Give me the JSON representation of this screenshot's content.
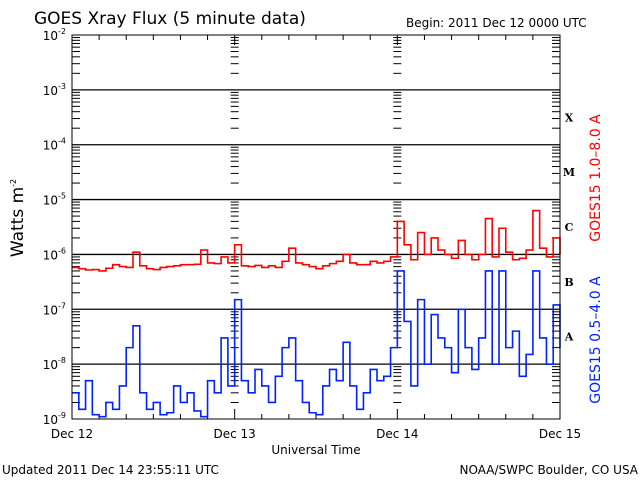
{
  "header": {
    "title": "GOES Xray Flux (5 minute data)",
    "begin": "Begin:  2011 Dec 12 0000 UTC"
  },
  "footer": {
    "updated": "Updated 2011 Dec 14 23:55:11 UTC",
    "credit": "NOAA/SWPC Boulder, CO USA"
  },
  "chart_data": {
    "type": "line",
    "title": "GOES Xray Flux (5 minute data)",
    "xlabel": "Universal Time",
    "ylabel": "Watts m",
    "ylabel_exp": "-2",
    "yscale": "log",
    "ylim": [
      1e-09,
      0.01
    ],
    "xlim_hours": [
      0,
      72
    ],
    "x_tick_labels": [
      "Dec 12",
      "Dec 13",
      "Dec 14",
      "Dec 15"
    ],
    "y_ticks": [
      {
        "base": "10",
        "exp": "-2"
      },
      {
        "base": "10",
        "exp": "-3"
      },
      {
        "base": "10",
        "exp": "-4"
      },
      {
        "base": "10",
        "exp": "-5"
      },
      {
        "base": "10",
        "exp": "-6"
      },
      {
        "base": "10",
        "exp": "-7"
      },
      {
        "base": "10",
        "exp": "-8"
      },
      {
        "base": "10",
        "exp": "-9"
      }
    ],
    "flare_classes": [
      "X",
      "M",
      "C",
      "B",
      "A"
    ],
    "grid": "horizontal at decades",
    "x_hours": [
      0,
      1,
      2,
      3,
      4,
      5,
      6,
      7,
      8,
      9,
      10,
      11,
      12,
      13,
      14,
      15,
      16,
      17,
      18,
      19,
      20,
      21,
      22,
      23,
      24,
      25,
      26,
      27,
      28,
      29,
      30,
      31,
      32,
      33,
      34,
      35,
      36,
      37,
      38,
      39,
      40,
      41,
      42,
      43,
      44,
      45,
      46,
      47,
      48,
      49,
      50,
      51,
      52,
      53,
      54,
      55,
      56,
      57,
      58,
      59,
      60,
      61,
      62,
      63,
      64,
      65,
      66,
      67,
      68,
      69,
      70,
      71,
      72
    ],
    "series": [
      {
        "name": "GOES15 1.0–8.0 A",
        "color": "#ff0000",
        "values": [
          5.8e-07,
          5.5e-07,
          5.2e-07,
          5.3e-07,
          5e-07,
          5.6e-07,
          6.5e-07,
          6e-07,
          5.8e-07,
          1.1e-06,
          6.2e-07,
          5.5e-07,
          5.3e-07,
          5.8e-07,
          6e-07,
          6.2e-07,
          6.5e-07,
          6.5e-07,
          6.6e-07,
          1.2e-06,
          7e-07,
          6.8e-07,
          9e-07,
          7e-07,
          1.5e-06,
          6.2e-07,
          6e-07,
          6.3e-07,
          5.8e-07,
          6.2e-07,
          5.8e-07,
          7.5e-07,
          1.3e-06,
          7e-07,
          6.5e-07,
          6e-07,
          5.5e-07,
          6.2e-07,
          6.8e-07,
          7.5e-07,
          1e-06,
          7e-07,
          6.5e-07,
          6.5e-07,
          7.5e-07,
          7e-07,
          7.5e-07,
          9e-07,
          4e-06,
          1.5e-06,
          8e-07,
          2.5e-06,
          1e-06,
          2e-06,
          1.2e-06,
          1e-06,
          8.5e-07,
          1.8e-06,
          1e-06,
          8e-07,
          1e-06,
          4.5e-06,
          9e-07,
          3e-06,
          1.1e-06,
          8e-07,
          8.5e-07,
          1.2e-06,
          6.3e-06,
          1.3e-06,
          9e-07,
          2e-06,
          1e-06
        ]
      },
      {
        "name": "GOES15 0.5–4.0 A",
        "color": "#0022ff",
        "values": [
          3e-09,
          1.5e-09,
          5e-09,
          1.2e-09,
          1.1e-09,
          2e-09,
          1.5e-09,
          4e-09,
          2e-08,
          5e-08,
          3e-09,
          1.5e-09,
          2e-09,
          1.2e-09,
          1.3e-09,
          4e-09,
          2e-09,
          3e-09,
          1.4e-09,
          1.1e-09,
          5e-09,
          3e-09,
          3e-08,
          4e-09,
          1.5e-07,
          5e-09,
          3e-09,
          8e-09,
          4e-09,
          2e-09,
          6e-09,
          2e-08,
          3e-08,
          5e-09,
          2e-09,
          1.3e-09,
          1.2e-09,
          4e-09,
          8e-09,
          5e-09,
          2.5e-08,
          4e-09,
          1.5e-09,
          3e-09,
          8e-09,
          5e-09,
          6e-09,
          2e-08,
          5e-07,
          6e-08,
          4e-09,
          1.5e-07,
          1e-08,
          8e-08,
          3e-08,
          2e-08,
          7e-09,
          1e-07,
          2e-08,
          8e-09,
          3e-08,
          5e-07,
          1e-08,
          5e-07,
          2e-08,
          4e-08,
          6e-09,
          1.5e-08,
          5e-07,
          3e-08,
          1e-08,
          1.2e-07,
          2e-08
        ]
      }
    ]
  }
}
